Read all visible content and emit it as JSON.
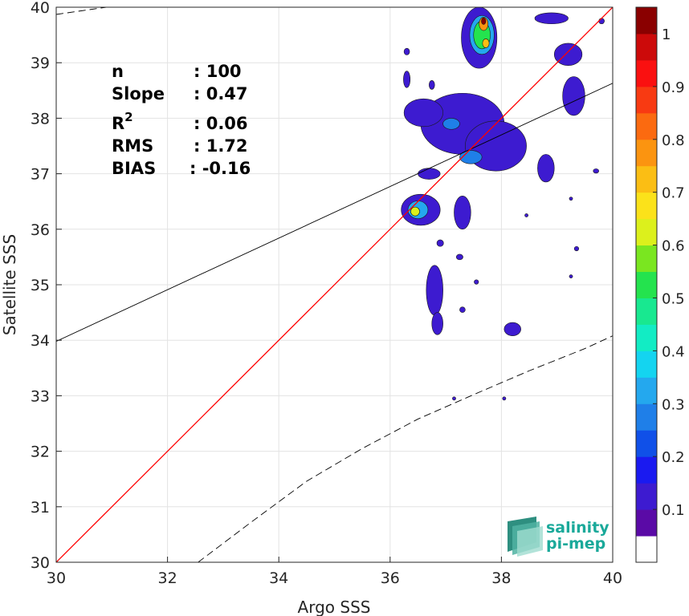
{
  "chart_data": {
    "type": "heatmap",
    "xlabel": "Argo SSS",
    "ylabel": "Satellite SSS",
    "xlim": [
      30,
      40
    ],
    "ylim": [
      30,
      40
    ],
    "xticks": [
      "30",
      "32",
      "34",
      "36",
      "38",
      "40"
    ],
    "yticks": [
      "30",
      "31",
      "32",
      "33",
      "34",
      "35",
      "36",
      "37",
      "38",
      "39",
      "40"
    ],
    "stats": [
      {
        "label": "n",
        "value": ": 100"
      },
      {
        "label": "Slope",
        "value": ": 0.47"
      },
      {
        "label": "R",
        "sup": "2",
        "value": ": 0.06"
      },
      {
        "label": "RMS",
        "value": ": 1.72"
      },
      {
        "label": "BIAS",
        "value": ": -0.16"
      }
    ],
    "lines": {
      "one_to_one": {
        "x": [
          30,
          40
        ],
        "y": [
          30,
          40
        ],
        "color": "#ff0000"
      },
      "regression": {
        "x": [
          30,
          40
        ],
        "y": [
          33.98,
          38.63
        ],
        "color": "#000000"
      },
      "envelope_upper": {
        "x": [
          30,
          30.9
        ],
        "y": [
          39.87,
          40.0
        ],
        "style": "dashed"
      },
      "envelope_lower": {
        "x": [
          32.55,
          33.5,
          34.5,
          35.5,
          36.5,
          37.5,
          38.5,
          39.5,
          40
        ],
        "y": [
          30.0,
          30.72,
          31.46,
          32.05,
          32.58,
          33.02,
          33.45,
          33.85,
          34.08
        ],
        "style": "dashed"
      }
    },
    "colorbar": {
      "ticks": [
        "0.1",
        "0.2",
        "0.3",
        "0.4",
        "0.5",
        "0.6",
        "0.7",
        "0.8",
        "0.9",
        "1"
      ],
      "colors": [
        "#ffffff",
        "#5a0aa6",
        "#3d1bd0",
        "#1a1af0",
        "#1050e8",
        "#1f7fe8",
        "#24a8ee",
        "#14d4f0",
        "#12ecc4",
        "#18e890",
        "#24e34e",
        "#7ae620",
        "#dcf01c",
        "#fbe21a",
        "#fbbe14",
        "#fb9410",
        "#fb6a10",
        "#f83a12",
        "#fa1010",
        "#cc0a0a",
        "#8a0000"
      ]
    },
    "density_blobs": [
      {
        "x": 37.6,
        "y": 39.45,
        "rx": 0.32,
        "ry": 0.55,
        "level": 0.1
      },
      {
        "x": 37.65,
        "y": 39.5,
        "rx": 0.22,
        "ry": 0.35,
        "level": 0.3
      },
      {
        "x": 37.65,
        "y": 39.5,
        "rx": 0.15,
        "ry": 0.25,
        "level": 0.5
      },
      {
        "x": 37.68,
        "y": 39.7,
        "rx": 0.08,
        "ry": 0.12,
        "level": 0.75
      },
      {
        "x": 37.68,
        "y": 39.75,
        "rx": 0.04,
        "ry": 0.06,
        "level": 1.0
      },
      {
        "x": 37.72,
        "y": 39.35,
        "rx": 0.06,
        "ry": 0.08,
        "level": 0.7
      },
      {
        "x": 37.3,
        "y": 37.9,
        "rx": 0.75,
        "ry": 0.55,
        "level": 0.1
      },
      {
        "x": 36.6,
        "y": 38.1,
        "rx": 0.35,
        "ry": 0.25,
        "level": 0.1
      },
      {
        "x": 37.9,
        "y": 37.5,
        "rx": 0.55,
        "ry": 0.45,
        "level": 0.1
      },
      {
        "x": 37.1,
        "y": 37.9,
        "rx": 0.15,
        "ry": 0.1,
        "level": 0.25
      },
      {
        "x": 37.45,
        "y": 37.3,
        "rx": 0.2,
        "ry": 0.12,
        "level": 0.25
      },
      {
        "x": 36.55,
        "y": 36.35,
        "rx": 0.35,
        "ry": 0.28,
        "level": 0.1
      },
      {
        "x": 36.5,
        "y": 36.35,
        "rx": 0.18,
        "ry": 0.16,
        "level": 0.3
      },
      {
        "x": 36.45,
        "y": 36.32,
        "rx": 0.08,
        "ry": 0.08,
        "level": 0.6
      },
      {
        "x": 36.8,
        "y": 34.9,
        "rx": 0.15,
        "ry": 0.45,
        "level": 0.1
      },
      {
        "x": 36.85,
        "y": 34.3,
        "rx": 0.1,
        "ry": 0.2,
        "level": 0.1
      },
      {
        "x": 37.3,
        "y": 36.3,
        "rx": 0.15,
        "ry": 0.3,
        "level": 0.1
      },
      {
        "x": 38.8,
        "y": 37.1,
        "rx": 0.15,
        "ry": 0.25,
        "level": 0.1
      },
      {
        "x": 39.2,
        "y": 39.15,
        "rx": 0.25,
        "ry": 0.2,
        "level": 0.1
      },
      {
        "x": 39.3,
        "y": 38.4,
        "rx": 0.2,
        "ry": 0.35,
        "level": 0.1
      },
      {
        "x": 38.9,
        "y": 39.8,
        "rx": 0.3,
        "ry": 0.1,
        "level": 0.1
      },
      {
        "x": 36.7,
        "y": 37.0,
        "rx": 0.2,
        "ry": 0.1,
        "level": 0.1
      },
      {
        "x": 38.2,
        "y": 34.2,
        "rx": 0.15,
        "ry": 0.12,
        "level": 0.1
      },
      {
        "x": 36.3,
        "y": 38.7,
        "rx": 0.06,
        "ry": 0.15,
        "level": 0.1
      },
      {
        "x": 36.75,
        "y": 38.6,
        "rx": 0.05,
        "ry": 0.08,
        "level": 0.1
      },
      {
        "x": 36.3,
        "y": 39.2,
        "rx": 0.05,
        "ry": 0.06,
        "level": 0.1
      },
      {
        "x": 36.9,
        "y": 35.75,
        "rx": 0.06,
        "ry": 0.06,
        "level": 0.1
      },
      {
        "x": 37.25,
        "y": 35.5,
        "rx": 0.06,
        "ry": 0.05,
        "level": 0.1
      },
      {
        "x": 37.55,
        "y": 35.05,
        "rx": 0.04,
        "ry": 0.04,
        "level": 0.1
      },
      {
        "x": 37.3,
        "y": 34.55,
        "rx": 0.05,
        "ry": 0.05,
        "level": 0.1
      },
      {
        "x": 39.7,
        "y": 37.05,
        "rx": 0.05,
        "ry": 0.04,
        "level": 0.1
      },
      {
        "x": 39.8,
        "y": 39.75,
        "rx": 0.05,
        "ry": 0.05,
        "level": 0.1
      },
      {
        "x": 39.35,
        "y": 35.65,
        "rx": 0.04,
        "ry": 0.04,
        "level": 0.1
      },
      {
        "x": 39.25,
        "y": 35.15,
        "rx": 0.03,
        "ry": 0.03,
        "level": 0.1
      },
      {
        "x": 39.25,
        "y": 36.55,
        "rx": 0.03,
        "ry": 0.03,
        "level": 0.1
      },
      {
        "x": 38.45,
        "y": 36.25,
        "rx": 0.03,
        "ry": 0.03,
        "level": 0.1
      },
      {
        "x": 37.15,
        "y": 32.95,
        "rx": 0.03,
        "ry": 0.03,
        "level": 0.1
      },
      {
        "x": 38.05,
        "y": 32.95,
        "rx": 0.03,
        "ry": 0.03,
        "level": 0.1
      }
    ]
  },
  "logo": {
    "line1": "salinity",
    "line2": "pi-mep"
  }
}
